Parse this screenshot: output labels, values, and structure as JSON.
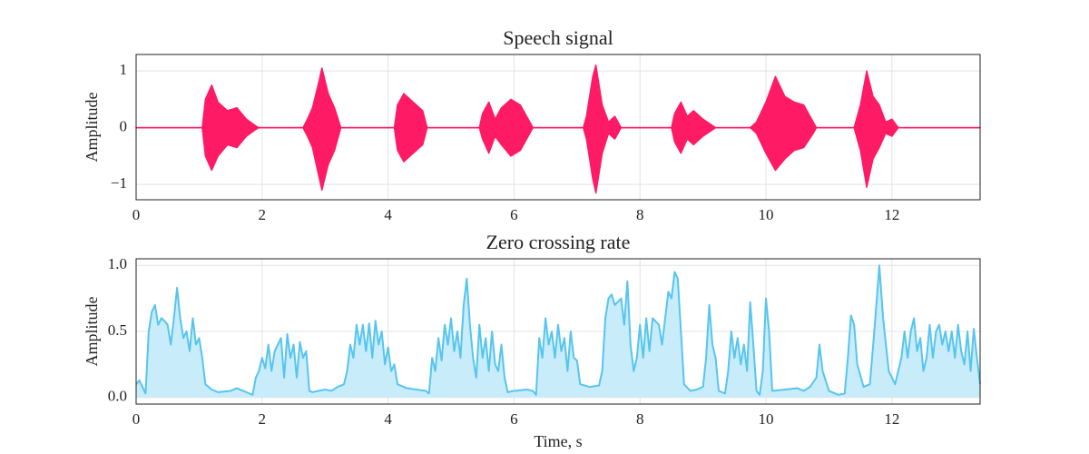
{
  "chart_data": [
    {
      "type": "envelope",
      "title": "Speech signal",
      "ylabel": "Amplitude",
      "color": "#ff1a66",
      "x": [
        0,
        1.05,
        1.1,
        1.2,
        1.3,
        1.45,
        1.6,
        1.75,
        1.9,
        1.95,
        2.65,
        2.72,
        2.8,
        2.9,
        2.95,
        3.05,
        3.15,
        3.25,
        4.1,
        4.15,
        4.25,
        4.4,
        4.55,
        4.62,
        5.45,
        5.5,
        5.6,
        5.7,
        5.8,
        5.95,
        6.1,
        6.25,
        6.3,
        7.1,
        7.15,
        7.25,
        7.3,
        7.4,
        7.5,
        7.6,
        7.7,
        8.5,
        8.55,
        8.65,
        8.75,
        8.85,
        9.0,
        9.2,
        9.75,
        9.85,
        10.0,
        10.15,
        10.3,
        10.45,
        10.6,
        10.75,
        10.8,
        11.4,
        11.5,
        11.6,
        11.7,
        11.8,
        11.9,
        12.0,
        12.1,
        13.4
      ],
      "upper": [
        0,
        0,
        0.5,
        0.75,
        0.45,
        0.3,
        0.35,
        0.15,
        0.03,
        0,
        0,
        0.15,
        0.35,
        0.8,
        1.05,
        0.6,
        0.35,
        0,
        0,
        0.4,
        0.6,
        0.45,
        0.3,
        0,
        0,
        0.25,
        0.45,
        0.15,
        0.35,
        0.5,
        0.4,
        0.1,
        0,
        0,
        0.2,
        0.9,
        1.1,
        0.4,
        0.1,
        0.2,
        0,
        0,
        0.25,
        0.45,
        0.2,
        0.3,
        0.15,
        0,
        0,
        0.1,
        0.45,
        0.9,
        0.55,
        0.45,
        0.4,
        0.1,
        0,
        0,
        0.4,
        1.0,
        0.55,
        0.4,
        0.1,
        0.15,
        0,
        0
      ],
      "lower": [
        0,
        0,
        -0.5,
        -0.75,
        -0.5,
        -0.3,
        -0.35,
        -0.15,
        -0.03,
        0,
        0,
        -0.15,
        -0.35,
        -0.85,
        -1.1,
        -0.65,
        -0.4,
        0,
        0,
        -0.4,
        -0.6,
        -0.45,
        -0.3,
        0,
        0,
        -0.2,
        -0.45,
        -0.15,
        -0.3,
        -0.5,
        -0.4,
        -0.1,
        0,
        0,
        -0.2,
        -0.9,
        -1.15,
        -0.45,
        -0.1,
        -0.2,
        0,
        0,
        -0.25,
        -0.45,
        -0.2,
        -0.3,
        -0.15,
        0,
        0,
        -0.1,
        -0.45,
        -0.75,
        -0.55,
        -0.4,
        -0.35,
        -0.1,
        0,
        0,
        -0.4,
        -1.05,
        -0.55,
        -0.35,
        -0.1,
        -0.15,
        0,
        0
      ],
      "xlim": [
        0,
        13.4
      ],
      "xticks": [
        0,
        2,
        4,
        6,
        8,
        10,
        12
      ],
      "ylim": [
        -1.27,
        1.29
      ],
      "yticks": [
        {
          "value": -1,
          "label": "−1"
        },
        0,
        1
      ],
      "grid": true
    },
    {
      "type": "area",
      "title": "Zero crossing rate",
      "ylabel": "Amplitude",
      "xlabel": "Time, s",
      "color": "#56c5ef",
      "fill_color": "#c9ecfa",
      "x": [
        0,
        0.05,
        0.15,
        0.2,
        0.25,
        0.3,
        0.35,
        0.4,
        0.45,
        0.5,
        0.55,
        0.6,
        0.65,
        0.7,
        0.75,
        0.8,
        0.85,
        0.9,
        0.95,
        1.0,
        1.05,
        1.1,
        1.2,
        1.3,
        1.5,
        1.6,
        1.7,
        1.8,
        1.85,
        1.9,
        1.95,
        2.0,
        2.05,
        2.1,
        2.15,
        2.2,
        2.3,
        2.35,
        2.4,
        2.45,
        2.5,
        2.55,
        2.6,
        2.65,
        2.7,
        2.75,
        2.8,
        2.9,
        3.0,
        3.1,
        3.2,
        3.3,
        3.35,
        3.4,
        3.45,
        3.5,
        3.55,
        3.6,
        3.65,
        3.7,
        3.75,
        3.8,
        3.85,
        3.9,
        3.95,
        4.0,
        4.05,
        4.1,
        4.15,
        4.3,
        4.45,
        4.6,
        4.65,
        4.7,
        4.75,
        4.8,
        4.85,
        4.9,
        4.95,
        5.0,
        5.05,
        5.1,
        5.15,
        5.2,
        5.25,
        5.3,
        5.35,
        5.4,
        5.45,
        5.5,
        5.55,
        5.6,
        5.65,
        5.7,
        5.75,
        5.8,
        5.85,
        5.9,
        6.0,
        6.2,
        6.3,
        6.35,
        6.4,
        6.45,
        6.5,
        6.55,
        6.6,
        6.65,
        6.7,
        6.75,
        6.8,
        6.85,
        6.9,
        6.95,
        7.0,
        7.05,
        7.2,
        7.35,
        7.4,
        7.45,
        7.5,
        7.55,
        7.6,
        7.7,
        7.75,
        7.8,
        7.85,
        7.9,
        7.95,
        8.0,
        8.05,
        8.1,
        8.15,
        8.2,
        8.3,
        8.35,
        8.4,
        8.45,
        8.5,
        8.55,
        8.6,
        8.65,
        8.7,
        8.8,
        8.9,
        9.0,
        9.05,
        9.1,
        9.15,
        9.2,
        9.25,
        9.35,
        9.4,
        9.45,
        9.5,
        9.55,
        9.6,
        9.65,
        9.7,
        9.75,
        9.8,
        9.85,
        9.9,
        9.95,
        10.0,
        10.05,
        10.1,
        10.3,
        10.5,
        10.6,
        10.7,
        10.8,
        10.85,
        10.9,
        11.0,
        11.15,
        11.25,
        11.3,
        11.35,
        11.4,
        11.45,
        11.55,
        11.65,
        11.72,
        11.8,
        11.86,
        11.95,
        12.05,
        12.15,
        12.2,
        12.25,
        12.3,
        12.35,
        12.4,
        12.45,
        12.5,
        12.55,
        12.6,
        12.65,
        12.7,
        12.75,
        12.8,
        12.85,
        12.9,
        12.95,
        13.0,
        13.05,
        13.1,
        13.15,
        13.2,
        13.25,
        13.3,
        13.35,
        13.4
      ],
      "values": [
        0.1,
        0.13,
        0.03,
        0.5,
        0.65,
        0.7,
        0.55,
        0.6,
        0.58,
        0.55,
        0.4,
        0.6,
        0.83,
        0.6,
        0.45,
        0.5,
        0.35,
        0.6,
        0.4,
        0.45,
        0.3,
        0.1,
        0.06,
        0.04,
        0.05,
        0.07,
        0.05,
        0.03,
        0.02,
        0.15,
        0.2,
        0.3,
        0.22,
        0.4,
        0.2,
        0.35,
        0.45,
        0.15,
        0.48,
        0.3,
        0.4,
        0.15,
        0.42,
        0.3,
        0.35,
        0.05,
        0.04,
        0.05,
        0.06,
        0.05,
        0.08,
        0.1,
        0.2,
        0.4,
        0.3,
        0.55,
        0.4,
        0.55,
        0.35,
        0.56,
        0.3,
        0.58,
        0.4,
        0.5,
        0.25,
        0.38,
        0.2,
        0.25,
        0.1,
        0.07,
        0.06,
        0.05,
        0.03,
        0.3,
        0.2,
        0.45,
        0.28,
        0.55,
        0.4,
        0.6,
        0.35,
        0.5,
        0.3,
        0.7,
        0.9,
        0.55,
        0.3,
        0.15,
        0.55,
        0.3,
        0.45,
        0.2,
        0.5,
        0.25,
        0.2,
        0.4,
        0.15,
        0.04,
        0.05,
        0.06,
        0.05,
        0.02,
        0.45,
        0.3,
        0.6,
        0.4,
        0.5,
        0.3,
        0.55,
        0.35,
        0.45,
        0.2,
        0.5,
        0.3,
        0.28,
        0.1,
        0.08,
        0.09,
        0.2,
        0.6,
        0.75,
        0.78,
        0.7,
        0.75,
        0.55,
        0.88,
        0.4,
        0.2,
        0.3,
        0.55,
        0.3,
        0.6,
        0.35,
        0.6,
        0.55,
        0.4,
        0.6,
        0.8,
        0.75,
        0.95,
        0.9,
        0.5,
        0.1,
        0.05,
        0.06,
        0.08,
        0.3,
        0.7,
        0.4,
        0.3,
        0.05,
        0.03,
        0.2,
        0.5,
        0.3,
        0.45,
        0.25,
        0.4,
        0.2,
        0.72,
        0.4,
        0.05,
        0.02,
        0.2,
        0.75,
        0.5,
        0.05,
        0.06,
        0.07,
        0.05,
        0.08,
        0.15,
        0.4,
        0.2,
        0.05,
        0.02,
        0.03,
        0.3,
        0.62,
        0.55,
        0.25,
        0.08,
        0.1,
        0.5,
        1.0,
        0.6,
        0.2,
        0.1,
        0.3,
        0.5,
        0.3,
        0.5,
        0.6,
        0.35,
        0.45,
        0.2,
        0.3,
        0.55,
        0.3,
        0.5,
        0.55,
        0.4,
        0.5,
        0.35,
        0.5,
        0.3,
        0.55,
        0.35,
        0.25,
        0.5,
        0.2,
        0.52,
        0.3,
        0.1
      ],
      "xlim": [
        0,
        13.4
      ],
      "xticks": [
        0,
        2,
        4,
        6,
        8,
        10,
        12
      ],
      "ylim": [
        -0.05,
        1.05
      ],
      "yticks": [
        {
          "value": 0,
          "label": "0.0"
        },
        {
          "value": 0.5,
          "label": "0.5"
        },
        {
          "value": 1,
          "label": "1.0"
        }
      ],
      "grid": true
    }
  ]
}
